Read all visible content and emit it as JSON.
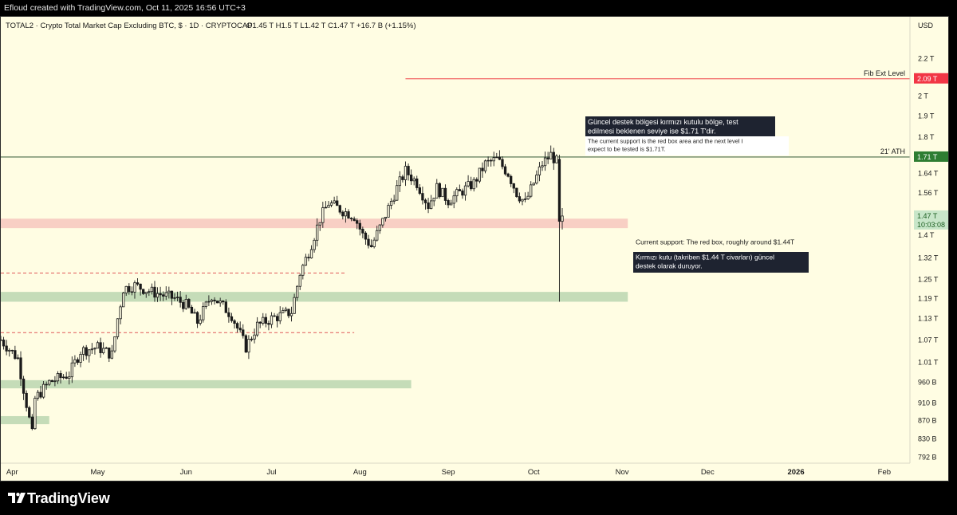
{
  "header": {
    "credit": "Efloud created with TradingView.com, Oct 11, 2025 16:56 UTC+3"
  },
  "footer": {
    "brand": "TradingView"
  },
  "chart_data": {
    "type": "candlestick",
    "title": "TOTAL2 · Crypto Total Market Cap Excluding BTC, $ · 1D · CRYPTOCAP",
    "ohlc_label": {
      "open": "O1.45 T",
      "high": "H1.5 T",
      "low": "L1.42 T",
      "close": "C1.47 T",
      "change": "+16.7 B (+1.15%)"
    },
    "currency": "USD",
    "y_scale": "log",
    "ylim": [
      0.78,
      2.45
    ],
    "x_range": [
      "2025-03-28",
      "2026-02-10"
    ],
    "x_ticks": [
      {
        "date": "2025-04-01",
        "label": "Apr",
        "bold": false
      },
      {
        "date": "2025-05-01",
        "label": "May",
        "bold": false
      },
      {
        "date": "2025-06-01",
        "label": "Jun",
        "bold": false
      },
      {
        "date": "2025-07-01",
        "label": "Jul",
        "bold": false
      },
      {
        "date": "2025-08-01",
        "label": "Aug",
        "bold": false
      },
      {
        "date": "2025-09-01",
        "label": "Sep",
        "bold": false
      },
      {
        "date": "2025-10-01",
        "label": "Oct",
        "bold": false
      },
      {
        "date": "2025-11-01",
        "label": "Nov",
        "bold": false
      },
      {
        "date": "2025-12-01",
        "label": "Dec",
        "bold": false
      },
      {
        "date": "2026-01-01",
        "label": "2026",
        "bold": true
      },
      {
        "date": "2026-02-01",
        "label": "Feb",
        "bold": false
      }
    ],
    "y_ticks": [
      {
        "value": 2.2,
        "label": "2.2 T"
      },
      {
        "value": 2.0,
        "label": "2 T"
      },
      {
        "value": 1.9,
        "label": "1.9 T"
      },
      {
        "value": 1.8,
        "label": "1.8 T"
      },
      {
        "value": 1.64,
        "label": "1.64 T"
      },
      {
        "value": 1.56,
        "label": "1.56 T"
      },
      {
        "value": 1.4,
        "label": "1.4 T"
      },
      {
        "value": 1.32,
        "label": "1.32 T"
      },
      {
        "value": 1.25,
        "label": "1.25 T"
      },
      {
        "value": 1.19,
        "label": "1.19 T"
      },
      {
        "value": 1.13,
        "label": "1.13 T"
      },
      {
        "value": 1.07,
        "label": "1.07 T"
      },
      {
        "value": 1.01,
        "label": "1.01 T"
      },
      {
        "value": 0.96,
        "label": "960 B"
      },
      {
        "value": 0.91,
        "label": "910 B"
      },
      {
        "value": 0.87,
        "label": "870 B"
      },
      {
        "value": 0.83,
        "label": "830 B"
      },
      {
        "value": 0.792,
        "label": "792 B"
      }
    ],
    "price_tags": [
      {
        "value": 2.09,
        "label": "2.09 T",
        "bg": "#f23645",
        "color": "#ffffff"
      },
      {
        "value": 1.71,
        "label": "1.71 T",
        "bg": "#2e7d32",
        "color": "#ffffff"
      },
      {
        "value": 1.47,
        "label": "1.47 T",
        "sublabel": "10:03:08",
        "bg": "#c8e6c9",
        "color": "#1b5e20"
      }
    ],
    "lines": [
      {
        "name": "Fib Ext Level",
        "value": 2.09,
        "from": "2025-08-17",
        "to": "2026-02-10",
        "color": "#f26b6b",
        "style": "solid"
      },
      {
        "name": "21' ATH",
        "value": 1.71,
        "from": "2025-03-28",
        "to": "2026-02-10",
        "color": "#4a6b4a",
        "style": "solid"
      },
      {
        "name": "",
        "value": 1.27,
        "from": "2025-03-28",
        "to": "2025-07-27",
        "color": "#e05858",
        "style": "dashed"
      },
      {
        "name": "",
        "value": 1.09,
        "from": "2025-03-28",
        "to": "2025-07-30",
        "color": "#e05858",
        "style": "dashed"
      }
    ],
    "zones": [
      {
        "from": "2025-03-28",
        "to": "2025-11-03",
        "top": 1.46,
        "bottom": 1.425,
        "color": "#f8cfc4",
        "note": "red support box"
      },
      {
        "from": "2025-03-28",
        "to": "2025-11-03",
        "top": 1.21,
        "bottom": 1.18,
        "color": "#c5dcb8"
      },
      {
        "from": "2025-03-28",
        "to": "2025-08-19",
        "top": 0.965,
        "bottom": 0.945,
        "color": "#c5dcb8"
      },
      {
        "from": "2025-03-28",
        "to": "2025-04-14",
        "top": 0.88,
        "bottom": 0.862,
        "color": "#c5dcb8"
      }
    ],
    "annotations": [
      {
        "text": "Güncel destek bölgesi kırmızı kutulu bölge, test edilmesi beklenen seviye ise $1.71 T'dir.",
        "style": "dark"
      },
      {
        "text": "The current support is the red box area and the next level I expect to be tested is $1.71T.",
        "style": "light"
      },
      {
        "text": "Current support: The red box, roughly around $1.44T",
        "style": "plain"
      },
      {
        "text": "Kırmızı kutu (takriben $1.44 T civarları) güncel destek olarak duruyor.",
        "style": "dark"
      }
    ],
    "series": [
      {
        "name": "TOTAL2",
        "key_points": [
          [
            "2025-03-28",
            1.07
          ],
          [
            "2025-04-03",
            1.02
          ],
          [
            "2025-04-08",
            0.84
          ],
          [
            "2025-04-09",
            0.92
          ],
          [
            "2025-04-14",
            0.96
          ],
          [
            "2025-04-21",
            0.98
          ],
          [
            "2025-04-25",
            1.04
          ],
          [
            "2025-05-01",
            1.05
          ],
          [
            "2025-05-06",
            1.03
          ],
          [
            "2025-05-08",
            1.13
          ],
          [
            "2025-05-10",
            1.22
          ],
          [
            "2025-05-14",
            1.23
          ],
          [
            "2025-05-20",
            1.21
          ],
          [
            "2025-05-28",
            1.19
          ],
          [
            "2025-06-01",
            1.17
          ],
          [
            "2025-06-05",
            1.12
          ],
          [
            "2025-06-10",
            1.2
          ],
          [
            "2025-06-17",
            1.14
          ],
          [
            "2025-06-22",
            1.05
          ],
          [
            "2025-06-26",
            1.11
          ],
          [
            "2025-07-01",
            1.13
          ],
          [
            "2025-07-08",
            1.15
          ],
          [
            "2025-07-11",
            1.27
          ],
          [
            "2025-07-14",
            1.34
          ],
          [
            "2025-07-18",
            1.46
          ],
          [
            "2025-07-21",
            1.52
          ],
          [
            "2025-07-26",
            1.49
          ],
          [
            "2025-07-30",
            1.47
          ],
          [
            "2025-08-02",
            1.4
          ],
          [
            "2025-08-05",
            1.36
          ],
          [
            "2025-08-09",
            1.45
          ],
          [
            "2025-08-14",
            1.58
          ],
          [
            "2025-08-17",
            1.65
          ],
          [
            "2025-08-21",
            1.6
          ],
          [
            "2025-08-25",
            1.51
          ],
          [
            "2025-08-28",
            1.58
          ],
          [
            "2025-09-01",
            1.53
          ],
          [
            "2025-09-05",
            1.56
          ],
          [
            "2025-09-10",
            1.6
          ],
          [
            "2025-09-14",
            1.68
          ],
          [
            "2025-09-18",
            1.7
          ],
          [
            "2025-09-22",
            1.64
          ],
          [
            "2025-09-25",
            1.56
          ],
          [
            "2025-09-28",
            1.52
          ],
          [
            "2025-10-01",
            1.6
          ],
          [
            "2025-10-04",
            1.68
          ],
          [
            "2025-10-07",
            1.72
          ],
          [
            "2025-10-09",
            1.69
          ],
          [
            "2025-10-10",
            1.45
          ],
          [
            "2025-10-11",
            1.47
          ]
        ]
      }
    ]
  }
}
